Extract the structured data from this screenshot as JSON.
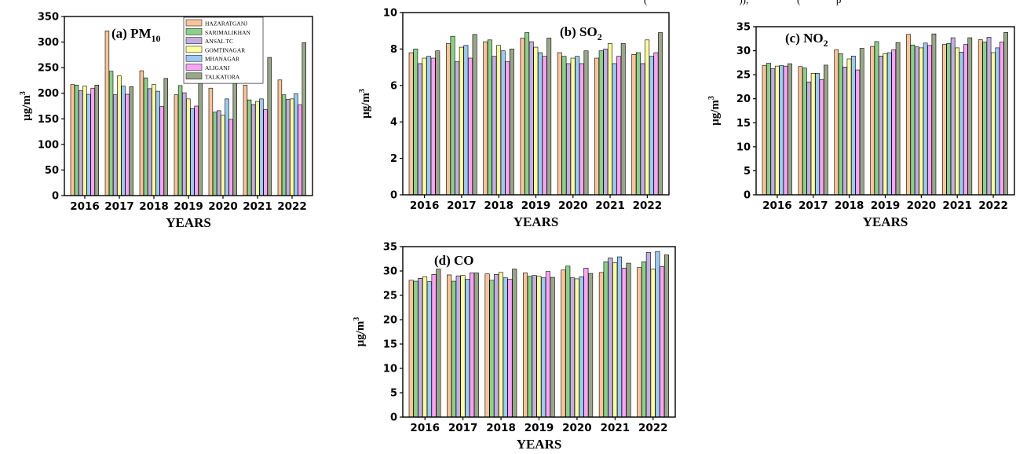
{
  "legend_entries": [
    "HAZARATGANJ",
    "SARIMALIKHAN",
    "ANSAL TC",
    "GOMTINAGAR",
    "MHANAGAR",
    "ALIGANJ",
    "TALKATORA"
  ],
  "series_colors": [
    "#f9c49a",
    "#8ccf8a",
    "#c2aee0",
    "#fbfba2",
    "#9ec9f0",
    "#f8a4f4",
    "#9aa68a"
  ],
  "caption_fragment": "(                                    )),                   (              p",
  "chart_data": [
    {
      "type": "bar",
      "title": "(a) PM",
      "title_sub": "10",
      "xlabel": "YEARS",
      "ylabel": "µg/m",
      "ylabel_sup": "3",
      "categories": [
        "2016",
        "2017",
        "2018",
        "2019",
        "2020",
        "2021",
        "2022"
      ],
      "ylim": [
        0,
        350
      ],
      "yticks": [
        "0",
        "50",
        "100",
        "150",
        "200",
        "250",
        "300",
        "350"
      ],
      "legend": "top-center",
      "series": [
        {
          "name": "HAZARATGANJ",
          "values": [
            217,
            322,
            244,
            197,
            210,
            216,
            226
          ]
        },
        {
          "name": "SARIMALIKHAN",
          "values": [
            216,
            243,
            230,
            215,
            163,
            187,
            197
          ]
        },
        {
          "name": "ANSAL TC",
          "values": [
            205,
            197,
            209,
            201,
            166,
            178,
            188
          ]
        },
        {
          "name": "GOMTINAGAR",
          "values": [
            214,
            234,
            217,
            189,
            157,
            184,
            189
          ]
        },
        {
          "name": "MHANAGAR",
          "values": [
            198,
            214,
            204,
            170,
            189,
            189,
            199
          ]
        },
        {
          "name": "ALIGANJ",
          "values": [
            210,
            198,
            174,
            175,
            149,
            168,
            177
          ]
        },
        {
          "name": "TALKATORA",
          "values": [
            216,
            213,
            229,
            224,
            221,
            270,
            299
          ]
        }
      ]
    },
    {
      "type": "bar",
      "title": "(b) SO",
      "title_sub": "2",
      "xlabel": "YEARS",
      "ylabel": "µg/m",
      "ylabel_sup": "3",
      "categories": [
        "2016",
        "2017",
        "2018",
        "2019",
        "2020",
        "2021",
        "2022"
      ],
      "ylim": [
        0,
        10
      ],
      "yticks": [
        "0",
        "2",
        "4",
        "6",
        "8",
        "10"
      ],
      "series": [
        {
          "name": "HAZARATGANJ",
          "values": [
            7.8,
            8.3,
            8.4,
            8.6,
            7.8,
            7.5,
            7.7
          ]
        },
        {
          "name": "SARIMALIKHAN",
          "values": [
            8.0,
            8.7,
            8.5,
            8.9,
            7.6,
            7.9,
            7.8
          ]
        },
        {
          "name": "ANSAL TC",
          "values": [
            7.2,
            7.3,
            7.6,
            8.4,
            7.2,
            8.0,
            7.2
          ]
        },
        {
          "name": "GOMTINAGAR",
          "values": [
            7.5,
            8.1,
            8.2,
            8.1,
            7.5,
            8.3,
            8.5
          ]
        },
        {
          "name": "MHANAGAR",
          "values": [
            7.6,
            8.2,
            7.9,
            7.8,
            7.6,
            7.2,
            7.6
          ]
        },
        {
          "name": "ALIGANJ",
          "values": [
            7.5,
            7.5,
            7.3,
            7.6,
            7.2,
            7.6,
            7.8
          ]
        },
        {
          "name": "TALKATORA",
          "values": [
            7.9,
            8.8,
            8.0,
            8.6,
            7.9,
            8.3,
            8.9
          ]
        }
      ]
    },
    {
      "type": "bar",
      "title": "(c) NO",
      "title_sub": "2",
      "xlabel": "YEARS",
      "ylabel": "µg/m",
      "ylabel_sup": "3",
      "categories": [
        "2016",
        "2017",
        "2018",
        "2019",
        "2020",
        "2021",
        "2022"
      ],
      "ylim": [
        0,
        35
      ],
      "yticks": [
        "0",
        "5",
        "10",
        "15",
        "20",
        "25",
        "30",
        "35"
      ],
      "series": [
        {
          "name": "HAZARATGANJ",
          "values": [
            26.9,
            26.7,
            30.2,
            30.9,
            33.4,
            31.3,
            32.3
          ]
        },
        {
          "name": "SARIMALIKHAN",
          "values": [
            27.4,
            26.4,
            29.4,
            31.9,
            31.2,
            31.5,
            31.8
          ]
        },
        {
          "name": "ANSAL TC",
          "values": [
            26.3,
            23.5,
            26.6,
            28.9,
            30.8,
            32.7,
            32.8
          ]
        },
        {
          "name": "GOMTINAGAR",
          "values": [
            26.8,
            25.3,
            28.3,
            29.4,
            30.6,
            30.6,
            29.6
          ]
        },
        {
          "name": "MHANAGAR",
          "values": [
            26.9,
            25.3,
            28.9,
            29.6,
            31.6,
            29.7,
            30.6
          ]
        },
        {
          "name": "ALIGANJ",
          "values": [
            26.8,
            24.0,
            26.0,
            30.2,
            31.1,
            31.3,
            31.8
          ]
        },
        {
          "name": "TALKATORA",
          "values": [
            27.3,
            27.0,
            30.5,
            31.7,
            33.5,
            32.7,
            33.8
          ]
        }
      ]
    },
    {
      "type": "bar",
      "title": "(d) CO",
      "xlabel": "YEARS",
      "ylabel": "µg/m",
      "ylabel_sup": "3",
      "categories": [
        "2016",
        "2017",
        "2018",
        "2019",
        "2020",
        "2021",
        "2022"
      ],
      "ylim": [
        0,
        35
      ],
      "yticks": [
        "0",
        "5",
        "10",
        "15",
        "20",
        "25",
        "30",
        "35"
      ],
      "series": [
        {
          "name": "HAZARATGANJ",
          "values": [
            28.1,
            29.2,
            29.4,
            29.6,
            30.2,
            29.7,
            30.7
          ]
        },
        {
          "name": "SARIMALIKHAN",
          "values": [
            27.9,
            27.9,
            28.1,
            28.9,
            31.0,
            31.9,
            31.9
          ]
        },
        {
          "name": "ANSAL TC",
          "values": [
            28.5,
            29.0,
            29.3,
            29.1,
            28.6,
            32.7,
            33.8
          ]
        },
        {
          "name": "GOMTINAGAR",
          "values": [
            28.8,
            29.1,
            29.7,
            28.9,
            28.4,
            31.7,
            30.4
          ]
        },
        {
          "name": "MHANAGAR",
          "values": [
            27.8,
            28.3,
            28.6,
            28.6,
            28.8,
            32.9,
            34.0
          ]
        },
        {
          "name": "ALIGANJ",
          "values": [
            29.3,
            29.6,
            28.3,
            29.9,
            30.6,
            30.6,
            30.9
          ]
        },
        {
          "name": "TALKATORA",
          "values": [
            30.4,
            29.6,
            30.4,
            28.7,
            29.5,
            31.6,
            33.3
          ]
        }
      ]
    }
  ]
}
